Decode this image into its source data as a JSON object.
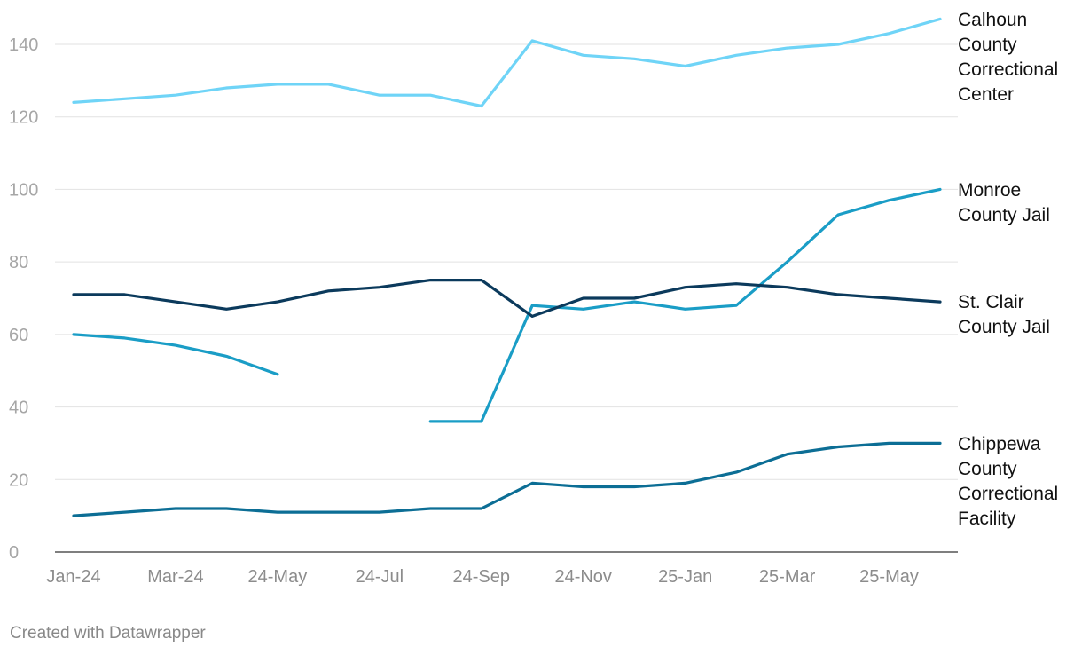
{
  "chart_data": {
    "type": "line",
    "categories": [
      "Jan-24",
      "Feb-24",
      "Mar-24",
      "Apr-24",
      "24-May",
      "24-Jun",
      "24-Jul",
      "24-Aug",
      "24-Sep",
      "24-Oct",
      "24-Nov",
      "24-Dec",
      "25-Jan",
      "25-Feb",
      "25-Mar",
      "25-Apr",
      "25-May",
      "25-Jun"
    ],
    "x_tick_labels": [
      "Jan-24",
      "Mar-24",
      "24-May",
      "24-Jul",
      "24-Sep",
      "24-Nov",
      "25-Jan",
      "25-Mar",
      "25-May"
    ],
    "y_ticks": [
      0,
      20,
      40,
      60,
      80,
      100,
      120,
      140
    ],
    "ylim": [
      0,
      147
    ],
    "grid": true,
    "legend": "line-end labels",
    "series": [
      {
        "name": "Calhoun County Correctional Center",
        "label_lines": [
          "Calhoun",
          "County",
          "Correctional",
          "Center"
        ],
        "color": "#6fd4f7",
        "values": [
          124,
          125,
          126,
          128,
          129,
          129,
          126,
          126,
          123,
          141,
          137,
          136,
          134,
          137,
          139,
          140,
          143,
          147
        ]
      },
      {
        "name": "Monroe County Jail",
        "label_lines": [
          "Monroe",
          "County Jail"
        ],
        "color": "#1a9dc6",
        "values": [
          60,
          59,
          57,
          54,
          49,
          null,
          null,
          36,
          36,
          68,
          67,
          69,
          67,
          68,
          80,
          93,
          97,
          100
        ]
      },
      {
        "name": "St. Clair County Jail",
        "label_lines": [
          "St. Clair",
          "County Jail"
        ],
        "color": "#0b3a5c",
        "values": [
          71,
          71,
          69,
          67,
          69,
          72,
          73,
          75,
          75,
          65,
          70,
          70,
          73,
          74,
          73,
          71,
          70,
          69
        ]
      },
      {
        "name": "Chippewa County Correctional Facility",
        "label_lines": [
          "Chippewa",
          "County",
          "Correctional",
          "Facility"
        ],
        "color": "#0c6e95",
        "values": [
          10,
          11,
          12,
          12,
          11,
          11,
          11,
          12,
          12,
          19,
          18,
          18,
          19,
          22,
          27,
          29,
          30,
          30
        ]
      }
    ]
  },
  "footer": {
    "credit": "Created with Datawrapper"
  }
}
